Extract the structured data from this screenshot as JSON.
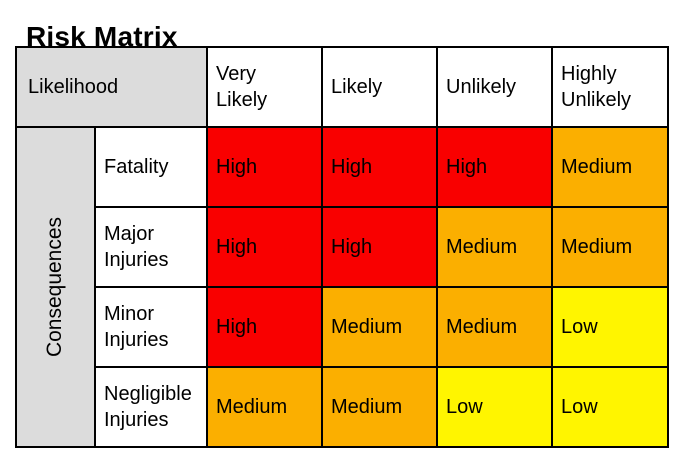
{
  "page": {
    "title": "Risk Matrix"
  },
  "colors": {
    "header_gray": "#dcdcdc",
    "border": "#000000",
    "high_red": "#f90000",
    "medium_orange": "#fbaf00",
    "low_yellow": "#fff500"
  },
  "matrix": {
    "corner_header": "Likelihood",
    "row_axis_label": "Consequences",
    "column_headers": [
      "Very Likely",
      "Likely",
      "Unlikely",
      "Highly Unlikely"
    ],
    "rows": [
      {
        "label": "Fatality",
        "cells": [
          {
            "level": "High",
            "color": "#f90000"
          },
          {
            "level": "High",
            "color": "#f90000"
          },
          {
            "level": "High",
            "color": "#f90000"
          },
          {
            "level": "Medium",
            "color": "#fbaf00"
          }
        ]
      },
      {
        "label": "Major Injuries",
        "cells": [
          {
            "level": "High",
            "color": "#f90000"
          },
          {
            "level": "High",
            "color": "#f90000"
          },
          {
            "level": "Medium",
            "color": "#fbaf00"
          },
          {
            "level": "Medium",
            "color": "#fbaf00"
          }
        ]
      },
      {
        "label": "Minor Injuries",
        "cells": [
          {
            "level": "High",
            "color": "#f90000"
          },
          {
            "level": "Medium",
            "color": "#fbaf00"
          },
          {
            "level": "Medium",
            "color": "#fbaf00"
          },
          {
            "level": "Low",
            "color": "#fff500"
          }
        ]
      },
      {
        "label": "Negligible Injuries",
        "cells": [
          {
            "level": "Medium",
            "color": "#fbaf00"
          },
          {
            "level": "Medium",
            "color": "#fbaf00"
          },
          {
            "level": "Low",
            "color": "#fff500"
          },
          {
            "level": "Low",
            "color": "#fff500"
          }
        ]
      }
    ]
  },
  "chart_data": {
    "type": "heatmap",
    "title": "Risk Matrix",
    "x_label": "Likelihood",
    "y_label": "Consequences",
    "x_categories": [
      "Very Likely",
      "Likely",
      "Unlikely",
      "Highly Unlikely"
    ],
    "y_categories": [
      "Fatality",
      "Major Injuries",
      "Minor Injuries",
      "Negligible Injuries"
    ],
    "values": [
      [
        "High",
        "High",
        "High",
        "Medium"
      ],
      [
        "High",
        "High",
        "Medium",
        "Medium"
      ],
      [
        "High",
        "Medium",
        "Medium",
        "Low"
      ],
      [
        "Medium",
        "Medium",
        "Low",
        "Low"
      ]
    ],
    "value_colors": {
      "High": "#f90000",
      "Medium": "#fbaf00",
      "Low": "#fff500"
    },
    "legend_position": "none",
    "grid": true
  }
}
